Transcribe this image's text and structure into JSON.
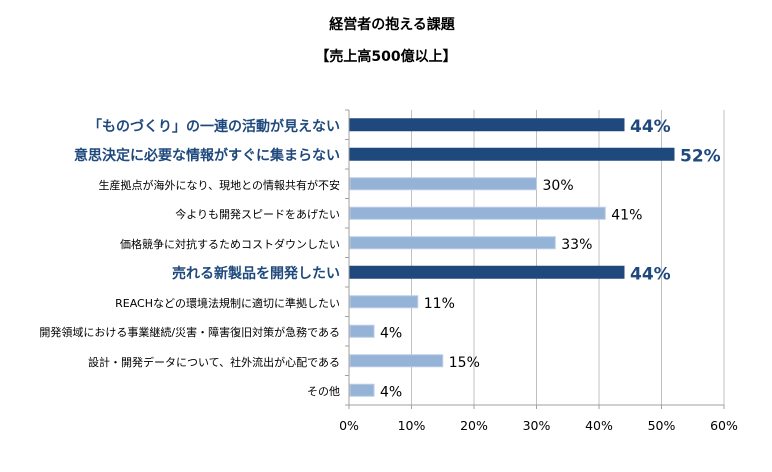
{
  "chart_data": {
    "type": "bar",
    "orientation": "horizontal",
    "title": "経営者の抱える課題",
    "subtitle": "【売上高500億以上】",
    "categories": [
      "「ものづくり」の一連の活動が見えない",
      "意思決定に必要な情報がすぐに集まらない",
      "生産拠点が海外になり、現地との情報共有が不安",
      "今よりも開発スピードをあげたい",
      "価格競争に対抗するためコストダウンしたい",
      "売れる新製品を開発したい",
      "REACHなどの環境法規制に適切に準拠したい",
      "開発領域における事業継続/災害・障害復旧対策が急務である",
      "設計・開発データについて、社外流出が心配である",
      "その他"
    ],
    "values": [
      44,
      52,
      30,
      41,
      33,
      44,
      11,
      4,
      15,
      4
    ],
    "value_labels": [
      "44%",
      "52%",
      "30%",
      "41%",
      "33%",
      "44%",
      "11%",
      "4%",
      "15%",
      "4%"
    ],
    "highlighted": [
      true,
      true,
      false,
      false,
      false,
      true,
      false,
      false,
      false,
      false
    ],
    "xlim": [
      0,
      60
    ],
    "xticks": [
      "0%",
      "10%",
      "20%",
      "30%",
      "40%",
      "50%",
      "60%"
    ],
    "xlabel": "",
    "ylabel": "",
    "grid": true,
    "legend": "none",
    "colors": {
      "highlight": "#1F497D",
      "normal": "#95B3D7",
      "normal_border": "#B9CDE5",
      "grid": "#C0C0C0",
      "highlight_text": "#1F497D"
    }
  }
}
